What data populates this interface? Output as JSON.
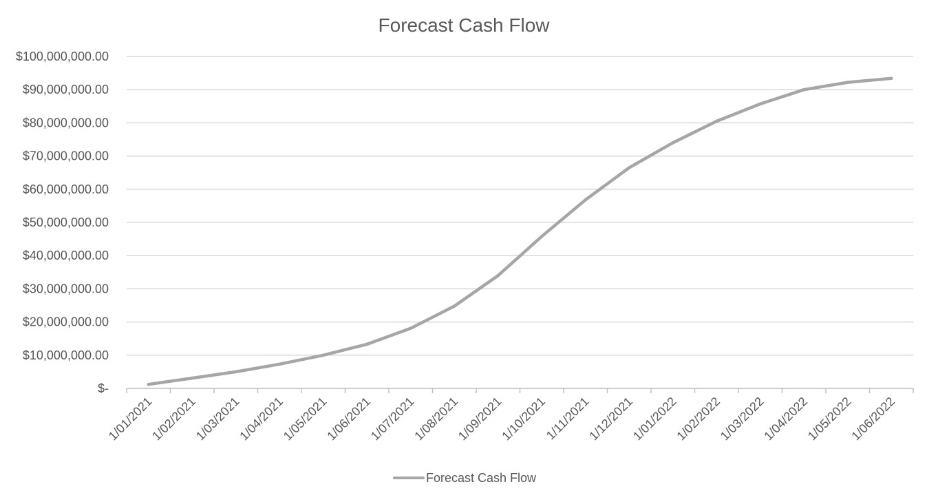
{
  "chart_data": {
    "type": "line",
    "title": "Forecast Cash Flow",
    "xlabel": "",
    "ylabel": "",
    "categories": [
      "1/01/2021",
      "1/02/2021",
      "1/03/2021",
      "1/04/2021",
      "1/05/2021",
      "1/06/2021",
      "1/07/2021",
      "1/08/2021",
      "1/09/2021",
      "1/10/2021",
      "1/11/2021",
      "1/12/2021",
      "1/01/2022",
      "1/02/2022",
      "1/03/2022",
      "1/04/2022",
      "1/05/2022",
      "1/06/2022"
    ],
    "series": [
      {
        "name": "Forecast Cash Flow",
        "color": "#a6a6a6",
        "values": [
          1200000,
          3100000,
          5000000,
          7300000,
          10000000,
          13300000,
          18100000,
          24800000,
          34000000,
          45800000,
          56800000,
          66500000,
          74000000,
          80500000,
          85700000,
          90000000,
          92200000,
          93400000
        ]
      }
    ],
    "ylim": [
      0,
      100000000
    ],
    "yticks": [
      0,
      10000000,
      20000000,
      30000000,
      40000000,
      50000000,
      60000000,
      70000000,
      80000000,
      90000000,
      100000000
    ],
    "ytick_labels": [
      "$-",
      "$10,000,000.00",
      "$20,000,000.00",
      "$30,000,000.00",
      "$40,000,000.00",
      "$50,000,000.00",
      "$60,000,000.00",
      "$70,000,000.00",
      "$80,000,000.00",
      "$90,000,000.00",
      "$100,000,000.00"
    ],
    "grid": true,
    "legend_position": "bottom",
    "colors": {
      "text": "#595959",
      "gridline": "#d9d9d9",
      "axis": "#bfbfbf"
    }
  }
}
